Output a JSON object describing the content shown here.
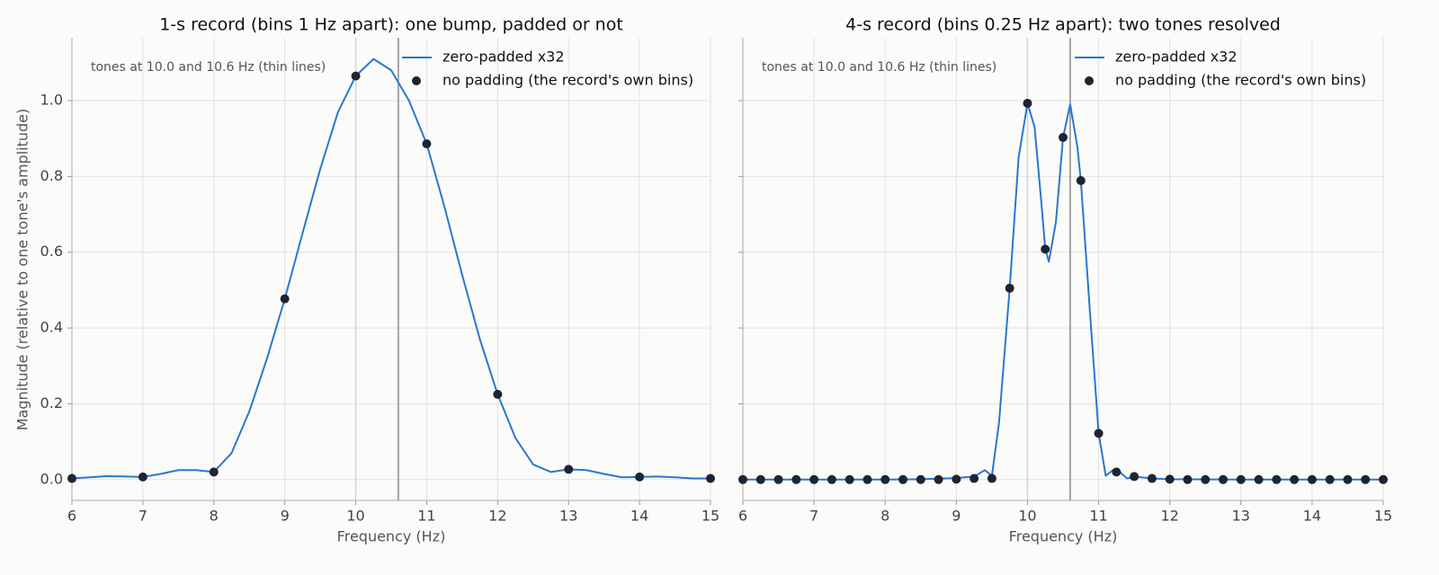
{
  "chart_data": [
    {
      "type": "line",
      "title": "1-s record (bins 1 Hz apart): one bump, padded or not",
      "xlabel": "Frequency (Hz)",
      "ylabel": "Magnitude (relative to one tone's amplitude)",
      "annotation": "tones at 10.0 and 10.6 Hz (thin lines)",
      "vlines": [
        10.0,
        10.6
      ],
      "vline_colors": [
        "#d4d4d4",
        "#8a8a8a"
      ],
      "xlim": [
        6,
        15
      ],
      "xticks": [
        6,
        7,
        8,
        9,
        10,
        11,
        12,
        13,
        14,
        15
      ],
      "ylim": [
        -0.055,
        1.166
      ],
      "yticks": [
        {
          "value": 0,
          "label": "0.0"
        },
        0.2,
        0.4,
        0.6,
        0.8,
        {
          "value": 1,
          "label": "1.0"
        }
      ],
      "ytick_labels": true,
      "grid": true,
      "legend": "upper-right",
      "series": [
        {
          "name": "zero-padded x32",
          "kind": "line",
          "color": "#2a77d2",
          "x": [
            6,
            6.25,
            6.5,
            6.75,
            7,
            7.25,
            7.5,
            7.75,
            8,
            8.25,
            8.5,
            8.75,
            9,
            9.25,
            9.5,
            9.75,
            10,
            10.25,
            10.5,
            10.75,
            11,
            11.25,
            11.5,
            11.75,
            12,
            12.25,
            12.5,
            12.75,
            13,
            13.25,
            13.5,
            13.75,
            14,
            14.25,
            14.5,
            14.75,
            15
          ],
          "values": [
            0.003,
            0.006,
            0.009,
            0.008,
            0.007,
            0.015,
            0.025,
            0.025,
            0.02,
            0.07,
            0.18,
            0.32,
            0.477,
            0.65,
            0.82,
            0.97,
            1.065,
            1.11,
            1.08,
            1.0,
            0.886,
            0.72,
            0.54,
            0.37,
            0.225,
            0.11,
            0.04,
            0.02,
            0.027,
            0.025,
            0.015,
            0.006,
            0.007,
            0.008,
            0.006,
            0.003,
            0.003
          ]
        },
        {
          "name": "no padding (the record's own bins)",
          "kind": "scatter",
          "color": "#1f2430",
          "x": [
            6,
            7,
            8,
            9,
            10,
            11,
            12,
            13,
            14,
            15
          ],
          "values": [
            0.003,
            0.007,
            0.02,
            0.477,
            1.065,
            0.886,
            0.225,
            0.027,
            0.007,
            0.003
          ]
        }
      ]
    },
    {
      "type": "line",
      "title": "4-s record (bins 0.25 Hz apart): two tones resolved",
      "xlabel": "Frequency (Hz)",
      "annotation": "tones at 10.0 and 10.6 Hz (thin lines)",
      "vlines": [
        10.0,
        10.6
      ],
      "vline_colors": [
        "#d4d4d4",
        "#8a8a8a"
      ],
      "xlim": [
        6,
        15
      ],
      "xticks": [
        6,
        7,
        8,
        9,
        10,
        11,
        12,
        13,
        14,
        15
      ],
      "ylim": [
        -0.055,
        1.166
      ],
      "yticks": [
        0,
        0.2,
        0.4,
        0.6,
        0.8,
        1
      ],
      "ytick_labels": false,
      "grid": true,
      "legend": "upper-right",
      "series": [
        {
          "name": "zero-padded x32",
          "kind": "line",
          "color": "#2a77d2",
          "x": [
            6,
            7,
            8,
            8.5,
            9,
            9.25,
            9.4,
            9.5,
            9.6,
            9.75,
            9.875,
            10,
            10.1,
            10.2,
            10.25,
            10.3,
            10.4,
            10.5,
            10.6,
            10.7,
            10.75,
            10.875,
            11,
            11.1,
            11.2,
            11.3,
            11.4,
            11.5,
            11.75,
            12,
            13,
            14,
            15
          ],
          "values": [
            0,
            0,
            0,
            0.001,
            0.004,
            0.008,
            0.025,
            0.01,
            0.15,
            0.505,
            0.85,
            0.993,
            0.93,
            0.72,
            0.608,
            0.575,
            0.68,
            0.903,
            0.99,
            0.88,
            0.789,
            0.45,
            0.122,
            0.01,
            0.025,
            0.02,
            0.003,
            0.008,
            0.003,
            0.001,
            0,
            0,
            0
          ]
        },
        {
          "name": "no padding (the record's own bins)",
          "kind": "scatter",
          "color": "#1f2430",
          "x": [
            6,
            6.25,
            6.5,
            6.75,
            7,
            7.25,
            7.5,
            7.75,
            8,
            8.25,
            8.5,
            8.75,
            9,
            9.25,
            9.5,
            9.75,
            10,
            10.25,
            10.5,
            10.75,
            11,
            11.25,
            11.5,
            11.75,
            12,
            12.25,
            12.5,
            12.75,
            13,
            13.25,
            13.5,
            13.75,
            14,
            14.25,
            14.5,
            14.75,
            15
          ],
          "values": [
            0,
            0,
            0,
            0,
            0,
            0,
            0,
            0,
            0,
            0,
            0,
            0,
            0.001,
            0.003,
            0.003,
            0.505,
            0.993,
            0.608,
            0.903,
            0.789,
            0.122,
            0.02,
            0.008,
            0.003,
            0.001,
            0,
            0,
            0,
            0,
            0,
            0,
            0,
            0,
            0,
            0,
            0,
            0
          ]
        }
      ]
    }
  ]
}
